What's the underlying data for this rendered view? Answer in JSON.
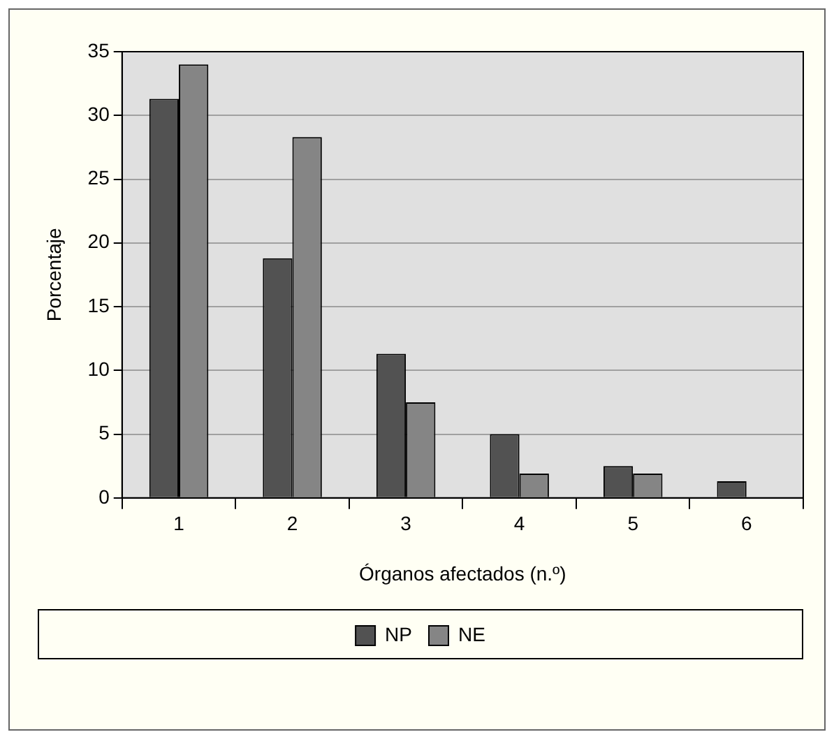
{
  "chart_data": {
    "type": "bar",
    "xlabel": "Órganos afectados (n.º)",
    "ylabel": "Porcentaje",
    "categories": [
      "1",
      "2",
      "3",
      "4",
      "5",
      "6"
    ],
    "series": [
      {
        "name": "NP",
        "color": "#525252",
        "values": [
          31.3,
          18.8,
          11.3,
          5.0,
          2.5,
          1.3
        ]
      },
      {
        "name": "NE",
        "color": "#858585",
        "values": [
          34.0,
          28.3,
          7.5,
          1.9,
          1.9,
          0
        ]
      }
    ],
    "ylim": [
      0,
      35
    ],
    "yticks": [
      0,
      5,
      10,
      15,
      20,
      25,
      30,
      35
    ],
    "grid": "y",
    "legend": "bottom"
  }
}
